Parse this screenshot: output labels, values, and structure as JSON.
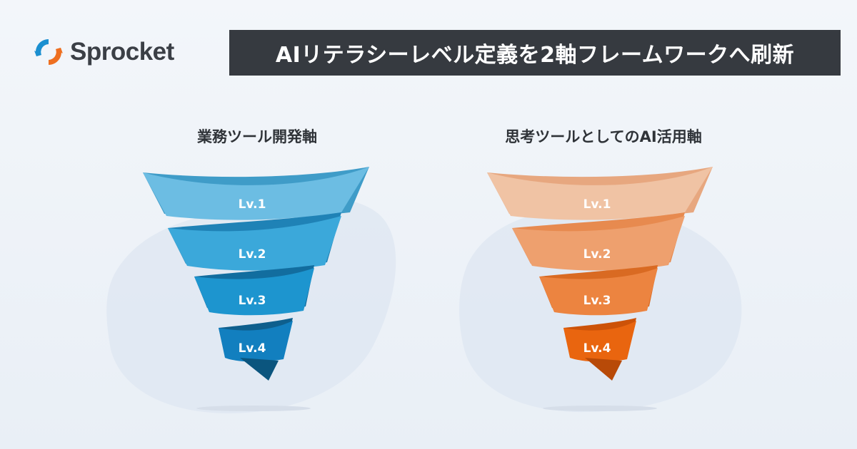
{
  "brand": {
    "name": "Sprocket"
  },
  "header": {
    "title": "AIリテラシーレベル定義を2軸フレームワークへ刷新"
  },
  "colors": {
    "title_bar": "#363a40",
    "blue_funnel": [
      "#6cbde3",
      "#3ba8da",
      "#1d95cf",
      "#127fbf"
    ],
    "orange_funnel": [
      "#f0c3a4",
      "#eea06e",
      "#ec8440",
      "#e9650f"
    ]
  },
  "panels": [
    {
      "title": "業務ツール開発軸",
      "theme": "blue",
      "levels": [
        "Lv.1",
        "Lv.2",
        "Lv.3",
        "Lv.4"
      ]
    },
    {
      "title": "思考ツールとしてのAI活用軸",
      "theme": "orange",
      "levels": [
        "Lv.1",
        "Lv.2",
        "Lv.3",
        "Lv.4"
      ]
    }
  ]
}
